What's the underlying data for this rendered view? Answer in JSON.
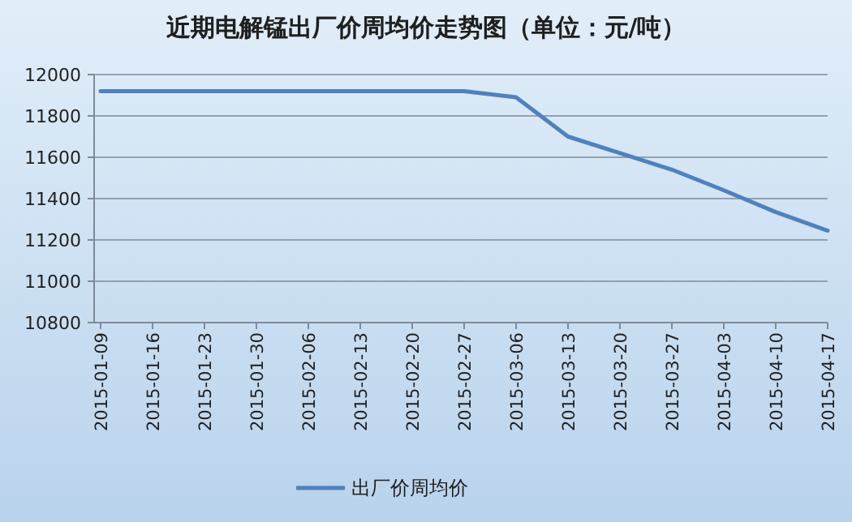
{
  "chart_data": {
    "type": "line",
    "title": "近期电解锰出厂价周均价走势图（单位：元/吨）",
    "categories": [
      "2015-01-09",
      "2015-01-16",
      "2015-01-23",
      "2015-01-30",
      "2015-02-06",
      "2015-02-13",
      "2015-02-20",
      "2015-02-27",
      "2015-03-06",
      "2015-03-13",
      "2015-03-20",
      "2015-03-27",
      "2015-04-03",
      "2015-04-10",
      "2015-04-17"
    ],
    "series": [
      {
        "name": "出厂价周均价",
        "color": "#4f81bd",
        "values": [
          11920,
          11920,
          11920,
          11920,
          11920,
          11920,
          11920,
          11920,
          11890,
          11700,
          11620,
          11540,
          11440,
          11335,
          11245
        ]
      }
    ],
    "ylim": [
      10800,
      12000
    ],
    "yticks": [
      10800,
      11000,
      11200,
      11400,
      11600,
      11800,
      12000
    ],
    "grid": "y",
    "legend": "bottom",
    "marker": "none",
    "line_style": "solid"
  }
}
